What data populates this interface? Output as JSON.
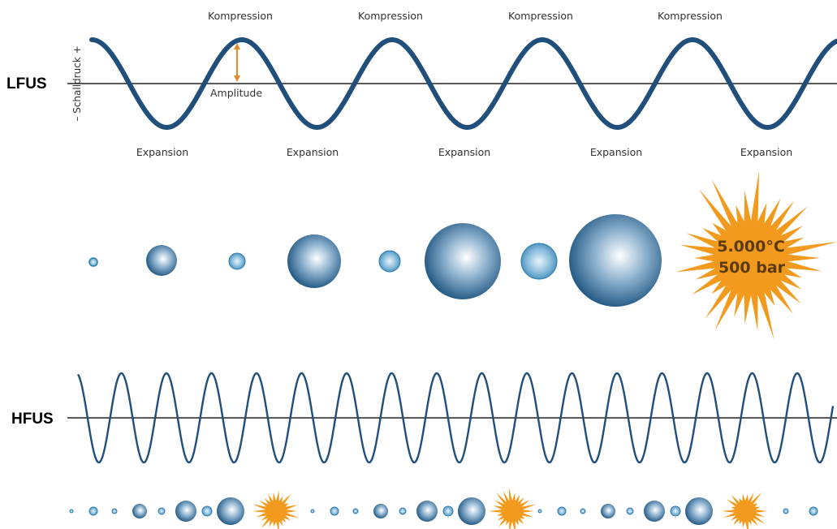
{
  "lfus": {
    "label": "LFUS",
    "axis_label": "– Schalldruck +",
    "compression_label": "Kompression",
    "expansion_label": "Expansion",
    "amplitude_label": "Amplitude"
  },
  "hfus": {
    "label": "HFUS"
  },
  "burst": {
    "temperature": "5.000°C",
    "pressure": "500 bar"
  },
  "colors": {
    "wave": "#1f4f7a",
    "bubble_dark": "#1b5a86",
    "bubble_light": "#ffffff",
    "burst": "#f29a1d",
    "arrow": "#e8892a"
  }
}
